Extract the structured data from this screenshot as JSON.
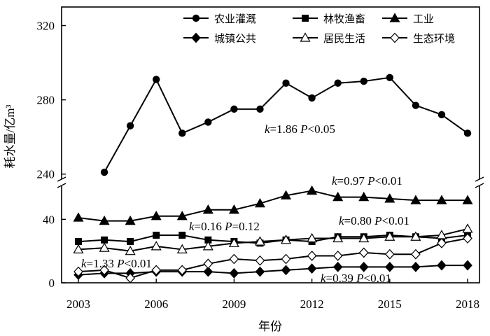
{
  "chart_data": {
    "type": "line",
    "ylabel": "耗水量/亿m³",
    "xlabel": "年份",
    "x_ticks": [
      2003,
      2006,
      2009,
      2012,
      2015,
      2018
    ],
    "x_range": [
      2003,
      2018
    ],
    "y_ticks_upper": [
      240,
      280,
      320
    ],
    "y_ticks_lower": [
      0,
      40
    ],
    "y_range_upper": [
      238,
      330
    ],
    "y_range_lower": [
      0,
      60
    ],
    "axis_break": "between 60 and 238",
    "grid": false,
    "legend_position": "top-right",
    "series": [
      {
        "name": "农业灌溉",
        "marker": "filled-circle",
        "x": [
          2004,
          2005,
          2006,
          2007,
          2008,
          2009,
          2010,
          2011,
          2012,
          2013,
          2014,
          2015,
          2016,
          2017,
          2018
        ],
        "values": [
          241,
          266,
          291,
          262,
          268,
          275,
          275,
          289,
          281,
          289,
          290,
          292,
          277,
          272,
          262
        ]
      },
      {
        "name": "林牧渔畜",
        "marker": "filled-square",
        "x": [
          2003,
          2004,
          2005,
          2006,
          2007,
          2008,
          2009,
          2010,
          2011,
          2012,
          2013,
          2014,
          2015,
          2016,
          2017,
          2018
        ],
        "values": [
          26,
          27,
          26,
          30,
          30,
          27,
          26,
          25,
          27,
          26,
          29,
          29,
          30,
          29,
          28,
          30
        ]
      },
      {
        "name": "工业",
        "marker": "filled-triangle",
        "x": [
          2003,
          2004,
          2005,
          2006,
          2007,
          2008,
          2009,
          2010,
          2011,
          2012,
          2013,
          2014,
          2015,
          2016,
          2017,
          2018
        ],
        "values": [
          41,
          39,
          39,
          42,
          42,
          46,
          46,
          50,
          55,
          58,
          54,
          54,
          53,
          52,
          52,
          52
        ]
      },
      {
        "name": "城镇公共",
        "marker": "filled-diamond",
        "x": [
          2003,
          2004,
          2005,
          2006,
          2007,
          2008,
          2009,
          2010,
          2011,
          2012,
          2013,
          2014,
          2015,
          2016,
          2017,
          2018
        ],
        "values": [
          5,
          6,
          6,
          7,
          7,
          7,
          6,
          7,
          8,
          9,
          10,
          10,
          10,
          10,
          11,
          11
        ]
      },
      {
        "name": "居民生活",
        "marker": "open-triangle",
        "x": [
          2003,
          2004,
          2005,
          2006,
          2007,
          2008,
          2009,
          2010,
          2011,
          2012,
          2013,
          2014,
          2015,
          2016,
          2017,
          2018
        ],
        "values": [
          21,
          22,
          20,
          23,
          21,
          23,
          25,
          26,
          27,
          28,
          28,
          28,
          29,
          29,
          30,
          34
        ]
      },
      {
        "name": "生态环境",
        "marker": "open-diamond",
        "x": [
          2003,
          2004,
          2005,
          2006,
          2007,
          2008,
          2009,
          2010,
          2011,
          2012,
          2013,
          2014,
          2015,
          2016,
          2017,
          2018
        ],
        "values": [
          7,
          8,
          3,
          8,
          8,
          12,
          15,
          14,
          15,
          17,
          17,
          19,
          18,
          18,
          25,
          28
        ]
      }
    ],
    "annotations": [
      {
        "k": "1.86",
        "p_op": "<",
        "p": "0.05"
      },
      {
        "k": "0.97",
        "p_op": "<",
        "p": "0.01"
      },
      {
        "k": "0.16",
        "p_op": "=",
        "p": "0.12"
      },
      {
        "k": "0.80",
        "p_op": "<",
        "p": "0.01"
      },
      {
        "k": "1.33",
        "p_op": "<",
        "p": "0.01"
      },
      {
        "k": "0.39",
        "p_op": "<",
        "p": "0.01"
      }
    ]
  }
}
